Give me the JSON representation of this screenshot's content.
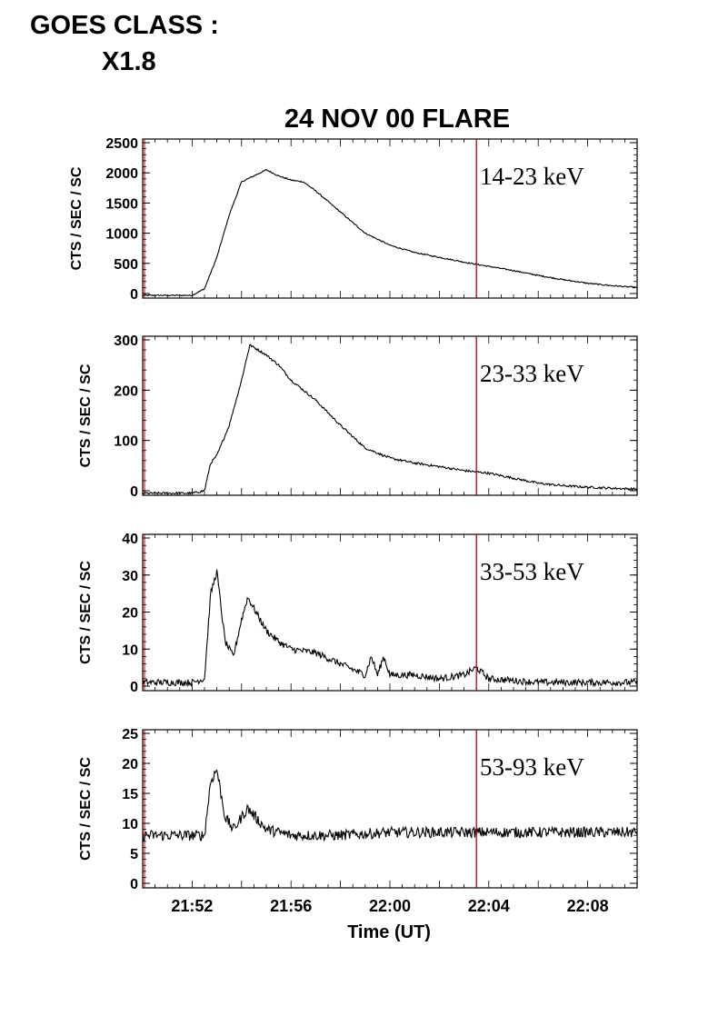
{
  "header": {
    "goes_label": "GOES CLASS :",
    "goes_value": "X1.8"
  },
  "chart_data": [
    {
      "type": "line",
      "title": "24 NOV 00 FLARE",
      "band": "14-23 keV",
      "ylabel": "CTS / SEC / SC",
      "xlabel": "",
      "ylim": [
        0,
        2500
      ],
      "yticks": [
        "0",
        "500",
        "1000",
        "1500",
        "2000",
        "2500"
      ],
      "xlim": [
        "21:50",
        "22:10"
      ],
      "xticks": [],
      "marker_time": "22:03:30",
      "series": [
        {
          "x": [
            "21:50",
            "21:51",
            "21:52",
            "21:52:30",
            "21:53",
            "21:53:30",
            "21:54",
            "21:54:30",
            "21:55",
            "21:55:30",
            "21:56",
            "21:56:30",
            "21:57",
            "21:58",
            "21:59",
            "22:00",
            "22:01",
            "22:02",
            "22:03",
            "22:04",
            "22:05",
            "22:06",
            "22:07",
            "22:08",
            "22:09",
            "22:10"
          ],
          "values": [
            -30,
            -30,
            -30,
            80,
            600,
            1300,
            1850,
            1950,
            2050,
            1950,
            1880,
            1850,
            1700,
            1350,
            1000,
            800,
            680,
            600,
            520,
            450,
            380,
            300,
            230,
            170,
            130,
            100
          ]
        }
      ]
    },
    {
      "type": "line",
      "title": "",
      "band": "23-33 keV",
      "ylabel": "CTS / SEC / SC",
      "xlabel": "",
      "ylim": [
        0,
        300
      ],
      "yticks": [
        "0",
        "100",
        "200",
        "300"
      ],
      "xlim": [
        "21:50",
        "22:10"
      ],
      "xticks": [],
      "marker_time": "22:03:30",
      "series": [
        {
          "x": [
            "21:50",
            "21:51",
            "21:52",
            "21:52:30",
            "21:52:45",
            "21:53",
            "21:53:30",
            "21:54",
            "21:54:20",
            "21:55",
            "21:55:30",
            "21:56",
            "21:57",
            "21:58",
            "21:59",
            "22:00",
            "22:01",
            "22:02",
            "22:03",
            "22:04",
            "22:05",
            "22:06",
            "22:07",
            "22:08",
            "22:09",
            "22:10"
          ],
          "values": [
            -5,
            -5,
            -5,
            0,
            55,
            70,
            130,
            220,
            290,
            270,
            250,
            220,
            180,
            130,
            85,
            65,
            55,
            48,
            40,
            35,
            25,
            15,
            10,
            7,
            5,
            3
          ]
        }
      ]
    },
    {
      "type": "line",
      "title": "",
      "band": "33-53 keV",
      "ylabel": "CTS / SEC / SC",
      "xlabel": "",
      "ylim": [
        0,
        40
      ],
      "yticks": [
        "0",
        "10",
        "20",
        "30",
        "40"
      ],
      "xlim": [
        "21:50",
        "22:10"
      ],
      "xticks": [],
      "marker_time": "22:03:30",
      "series": [
        {
          "x": [
            "21:50",
            "21:52",
            "21:52:30",
            "21:52:45",
            "21:53",
            "21:53:20",
            "21:53:40",
            "21:54",
            "21:54:15",
            "21:55",
            "21:55:30",
            "21:56",
            "21:57",
            "21:58",
            "21:59",
            "21:59:15",
            "21:59:30",
            "21:59:45",
            "22:00",
            "22:01",
            "22:02",
            "22:03",
            "22:03:30",
            "22:04",
            "22:06",
            "22:08",
            "22:10"
          ],
          "values": [
            1,
            1,
            2,
            25,
            31,
            12,
            8,
            18,
            24,
            15,
            12,
            10,
            9,
            6,
            3,
            8,
            3,
            8,
            3,
            3,
            2,
            3,
            5,
            2,
            1,
            1,
            1
          ]
        }
      ]
    },
    {
      "type": "line",
      "title": "",
      "band": "53-93 keV",
      "ylabel": "CTS / SEC / SC",
      "xlabel": "Time (UT)",
      "ylim": [
        0,
        25
      ],
      "yticks": [
        "0",
        "5",
        "10",
        "15",
        "20",
        "25"
      ],
      "xlim": [
        "21:50",
        "22:10"
      ],
      "xticks": [
        "21:52",
        "21:56",
        "22:00",
        "22:04",
        "22:08"
      ],
      "marker_time": "22:03:30",
      "series": [
        {
          "x": [
            "21:50",
            "21:52",
            "21:52:30",
            "21:52:45",
            "21:53",
            "21:53:20",
            "21:53:40",
            "21:54",
            "21:54:15",
            "21:55",
            "21:56",
            "21:58",
            "22:00",
            "22:02",
            "22:04",
            "22:06",
            "22:08",
            "22:10"
          ],
          "values": [
            8,
            8,
            8,
            17,
            19,
            11,
            9,
            11,
            12.5,
            9,
            8,
            8,
            8.5,
            8.5,
            8.5,
            8.5,
            8.5,
            8.5
          ]
        }
      ]
    }
  ]
}
